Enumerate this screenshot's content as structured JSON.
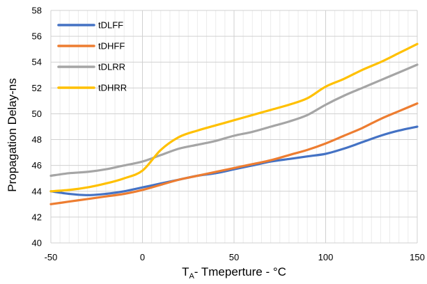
{
  "chart_data": {
    "type": "line",
    "title": "",
    "xlabel_main": "T",
    "xlabel_sub": "A",
    "xlabel_rest": "- Tmeperture - °C",
    "ylabel": "Propagation Delay-ns",
    "xlim": [
      -50,
      150
    ],
    "ylim": [
      40,
      58
    ],
    "x_ticks": [
      -50,
      0,
      50,
      100,
      150
    ],
    "y_ticks": [
      40,
      42,
      44,
      46,
      48,
      50,
      52,
      54,
      56,
      58
    ],
    "x_minor_step": 5,
    "grid": true,
    "legend_position": "top-left",
    "series": [
      {
        "name": "tDLFF",
        "color": "#4472C4",
        "points": [
          [
            -50,
            44.0
          ],
          [
            -40,
            43.8
          ],
          [
            -30,
            43.7
          ],
          [
            -20,
            43.8
          ],
          [
            -10,
            44.0
          ],
          [
            0,
            44.3
          ],
          [
            10,
            44.6
          ],
          [
            20,
            44.9
          ],
          [
            30,
            45.2
          ],
          [
            40,
            45.4
          ],
          [
            50,
            45.7
          ],
          [
            60,
            46.0
          ],
          [
            70,
            46.3
          ],
          [
            80,
            46.5
          ],
          [
            90,
            46.7
          ],
          [
            100,
            46.9
          ],
          [
            110,
            47.3
          ],
          [
            120,
            47.8
          ],
          [
            130,
            48.3
          ],
          [
            140,
            48.7
          ],
          [
            150,
            49.0
          ]
        ]
      },
      {
        "name": "tDHFF",
        "color": "#ED7D31",
        "points": [
          [
            -50,
            43.0
          ],
          [
            -40,
            43.2
          ],
          [
            -30,
            43.4
          ],
          [
            -20,
            43.6
          ],
          [
            -10,
            43.8
          ],
          [
            0,
            44.1
          ],
          [
            10,
            44.5
          ],
          [
            20,
            44.9
          ],
          [
            30,
            45.2
          ],
          [
            40,
            45.5
          ],
          [
            50,
            45.8
          ],
          [
            60,
            46.1
          ],
          [
            70,
            46.4
          ],
          [
            80,
            46.8
          ],
          [
            90,
            47.2
          ],
          [
            100,
            47.7
          ],
          [
            110,
            48.3
          ],
          [
            120,
            48.9
          ],
          [
            130,
            49.6
          ],
          [
            140,
            50.2
          ],
          [
            150,
            50.8
          ]
        ]
      },
      {
        "name": "tDLRR",
        "color": "#A5A5A5",
        "points": [
          [
            -50,
            45.2
          ],
          [
            -40,
            45.4
          ],
          [
            -30,
            45.5
          ],
          [
            -20,
            45.7
          ],
          [
            -10,
            46.0
          ],
          [
            0,
            46.3
          ],
          [
            10,
            46.8
          ],
          [
            20,
            47.3
          ],
          [
            30,
            47.6
          ],
          [
            40,
            47.9
          ],
          [
            50,
            48.3
          ],
          [
            60,
            48.6
          ],
          [
            70,
            49.0
          ],
          [
            80,
            49.4
          ],
          [
            90,
            49.9
          ],
          [
            100,
            50.7
          ],
          [
            110,
            51.4
          ],
          [
            120,
            52.0
          ],
          [
            130,
            52.6
          ],
          [
            140,
            53.2
          ],
          [
            150,
            53.8
          ]
        ]
      },
      {
        "name": "tDHRR",
        "color": "#FFC000",
        "points": [
          [
            -50,
            44.0
          ],
          [
            -40,
            44.1
          ],
          [
            -30,
            44.3
          ],
          [
            -20,
            44.6
          ],
          [
            -10,
            45.0
          ],
          [
            0,
            45.6
          ],
          [
            10,
            47.2
          ],
          [
            20,
            48.2
          ],
          [
            30,
            48.7
          ],
          [
            40,
            49.1
          ],
          [
            50,
            49.5
          ],
          [
            60,
            49.9
          ],
          [
            70,
            50.3
          ],
          [
            80,
            50.7
          ],
          [
            90,
            51.2
          ],
          [
            100,
            52.1
          ],
          [
            110,
            52.7
          ],
          [
            120,
            53.4
          ],
          [
            130,
            54.0
          ],
          [
            140,
            54.7
          ],
          [
            150,
            55.4
          ]
        ]
      }
    ]
  }
}
